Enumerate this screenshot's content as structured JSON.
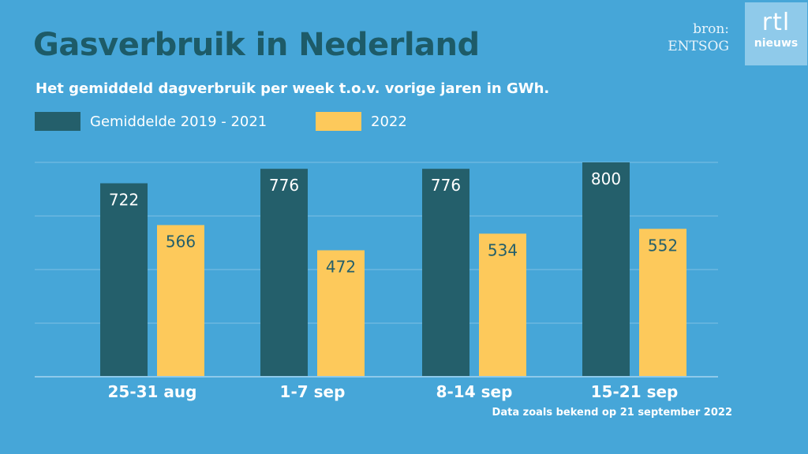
{
  "colors": {
    "background": "#46a6d8",
    "series_2019_2021": "#245f6b",
    "series_2022": "#fdc95b",
    "title": "#1d5b68"
  },
  "source": {
    "label": "bron:",
    "name": "ENTSOG"
  },
  "logo": {
    "top": "rtl",
    "bottom": "nieuws"
  },
  "footnote": "Data zoals bekend op 21 september 2022",
  "chart_data": {
    "type": "bar",
    "title": "Gasverbruik in Nederland",
    "subtitle": "Het gemiddeld dagverbruik per week t.o.v. vorige jaren in GWh.",
    "categories": [
      "25-31 aug",
      "1-7 sep",
      "8-14 sep",
      "15-21 sep"
    ],
    "series": [
      {
        "name": "Gemiddelde 2019 - 2021",
        "values": [
          722,
          776,
          776,
          800
        ]
      },
      {
        "name": "2022",
        "values": [
          566,
          472,
          534,
          552
        ]
      }
    ],
    "ylim": [
      0,
      800
    ],
    "grid": true,
    "legend_position": "top-left",
    "xlabel": "",
    "ylabel": ""
  }
}
